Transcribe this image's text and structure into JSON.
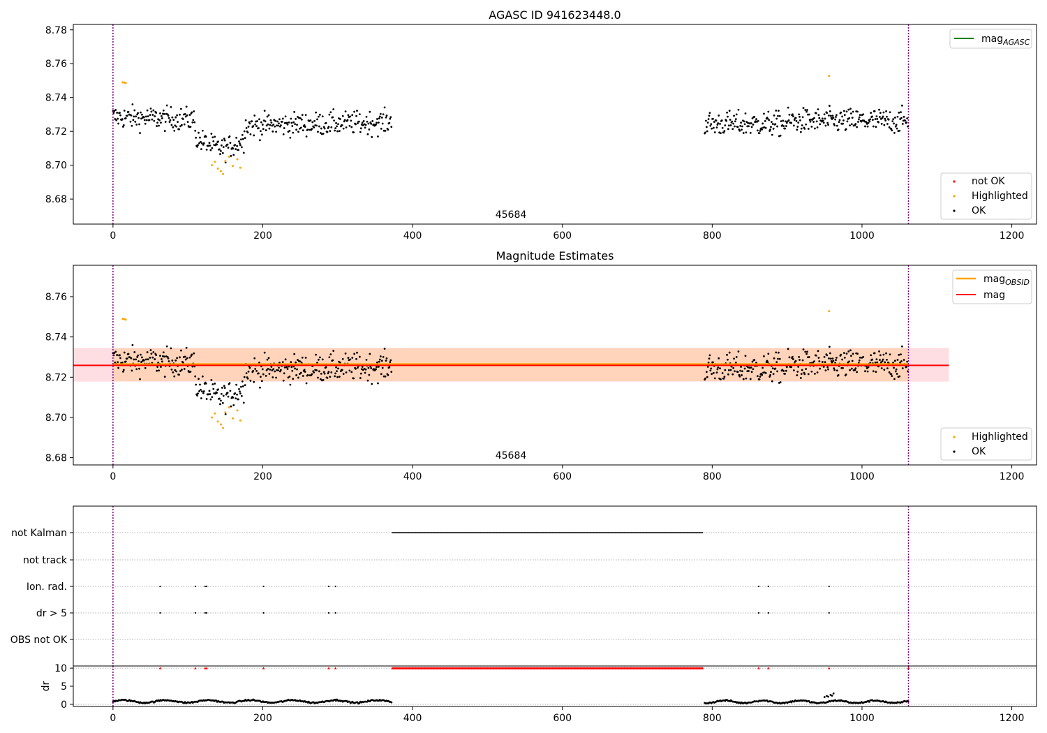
{
  "figure": {
    "title": "AGASC ID 941623448.0"
  },
  "chart_data": [
    {
      "id": "top",
      "type": "scatter",
      "title": "AGASC ID 941623448.0",
      "xlim": [
        -53,
        1233
      ],
      "ylim": [
        8.6652,
        8.7832
      ],
      "xticks": [
        0,
        200,
        400,
        600,
        800,
        1000,
        1200
      ],
      "yticks": [
        8.68,
        8.7,
        8.72,
        8.74,
        8.76,
        8.78
      ],
      "vlines": [
        0,
        1062
      ],
      "obs_label": "45684",
      "line_legend": {
        "name": "mag",
        "sub": "AGASC",
        "color": "#008000"
      },
      "point_legend": [
        {
          "name": "not OK",
          "color": "#ff0000"
        },
        {
          "name": "Highlighted",
          "color": "#ffa500"
        },
        {
          "name": "OK",
          "color": "#000000"
        }
      ],
      "highlighted": [
        [
          13,
          8.749
        ],
        [
          15,
          8.7488
        ],
        [
          17,
          8.7486
        ],
        [
          132,
          8.7
        ],
        [
          136,
          8.702
        ],
        [
          140,
          8.698
        ],
        [
          144,
          8.6965
        ],
        [
          147,
          8.6948
        ],
        [
          150,
          8.7025
        ],
        [
          155,
          8.705
        ],
        [
          160,
          8.6995
        ],
        [
          166,
          8.7035
        ],
        [
          170,
          8.6985
        ],
        [
          956,
          8.7528
        ]
      ]
    },
    {
      "id": "mid",
      "type": "scatter",
      "title": "Magnitude Estimates",
      "xlim": [
        -53,
        1233
      ],
      "ylim": [
        8.6764,
        8.7756
      ],
      "xticks": [
        0,
        200,
        400,
        600,
        800,
        1000,
        1200
      ],
      "yticks": [
        8.68,
        8.7,
        8.72,
        8.74,
        8.76
      ],
      "vlines": [
        0,
        1062
      ],
      "obs_label": "45684",
      "mag": 8.7262,
      "mag_band": [
        8.7178,
        8.7346
      ],
      "band_end": 1116,
      "obs_mag": 8.7262,
      "obs_band": [
        8.718,
        8.7343
      ],
      "obs_band_x": [
        0,
        1062
      ],
      "line_legend": [
        {
          "name": "mag",
          "sub": "OBSID",
          "color": "#ffa500"
        },
        {
          "name": "mag",
          "sub": "",
          "color": "#ff0000"
        }
      ],
      "point_legend": [
        {
          "name": "Highlighted",
          "color": "#ffa500"
        },
        {
          "name": "OK",
          "color": "#000000"
        }
      ],
      "highlighted": [
        [
          13,
          8.749
        ],
        [
          15,
          8.7488
        ],
        [
          17,
          8.7486
        ],
        [
          132,
          8.7
        ],
        [
          136,
          8.702
        ],
        [
          140,
          8.698
        ],
        [
          144,
          8.6965
        ],
        [
          147,
          8.6948
        ],
        [
          150,
          8.7025
        ],
        [
          155,
          8.705
        ],
        [
          160,
          8.6995
        ],
        [
          166,
          8.7035
        ],
        [
          170,
          8.6985
        ],
        [
          956,
          8.7528
        ]
      ]
    },
    {
      "id": "flags",
      "type": "scatter",
      "xlim": [
        -53,
        1233
      ],
      "rows": [
        "not Kalman",
        "not track",
        "Ion. rad.",
        "dr > 5",
        "OBS not OK"
      ],
      "not_kalman_range": [
        373,
        788
      ],
      "not_kalman_extra": [
        1062
      ],
      "dr_events": [
        63,
        110,
        123,
        125,
        201,
        288,
        297,
        862,
        875,
        956
      ],
      "vlines": [
        0,
        1062
      ]
    },
    {
      "id": "dr",
      "type": "scatter",
      "xlim": [
        -53,
        1233
      ],
      "ylim": [
        -0.6,
        10.6
      ],
      "yticks": [
        0,
        5,
        10
      ],
      "ylabel": "dr",
      "xticks": [
        0,
        200,
        400,
        600,
        800,
        1000,
        1200
      ],
      "vlines": [
        0,
        1062
      ],
      "dr_threshold": 10,
      "dr_spikes": [
        [
          950,
          2.0
        ],
        [
          953,
          2.3
        ],
        [
          955,
          2.1
        ],
        [
          958,
          2.6
        ],
        [
          960,
          2.4
        ],
        [
          962,
          3.0
        ]
      ]
    }
  ]
}
